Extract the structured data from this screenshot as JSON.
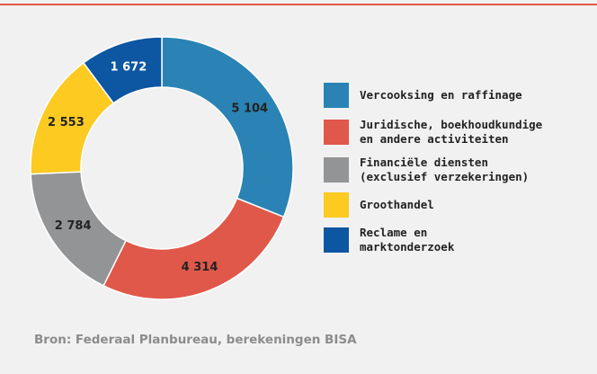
{
  "chart_data": {
    "type": "pie",
    "categories": [
      "Vercooksing en raffinage",
      "Juridische, boekhoudkundige\nen andere activiteiten",
      "Financiële diensten\n(exclusief verzekeringen)",
      "Groothandel",
      "Reclame en\nmarktonderzoek"
    ],
    "values": [
      5104,
      4314,
      2784,
      2553,
      1672
    ],
    "value_labels": [
      "5 104",
      "4 314",
      "2 784",
      "2 553",
      "1 672"
    ],
    "colors": [
      "#2a83b4",
      "#e0584a",
      "#939496",
      "#fcca21",
      "#0c56a2"
    ],
    "source": "Bron: Federaal Planbureau, berekeningen BISA"
  }
}
